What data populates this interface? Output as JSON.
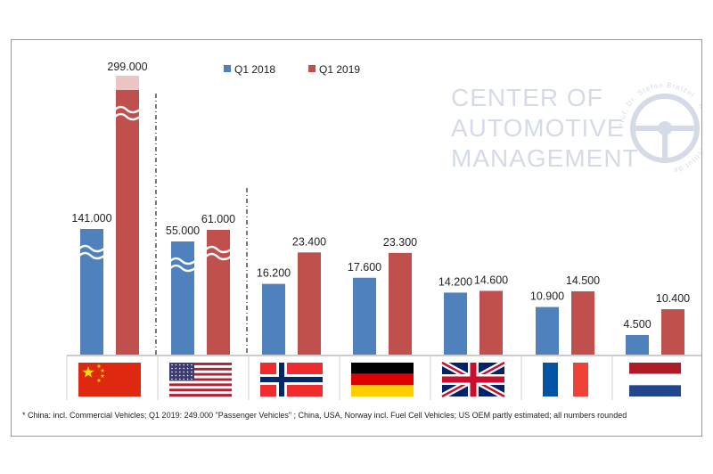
{
  "chart_data": {
    "type": "bar",
    "categories": [
      "China",
      "USA",
      "Norway",
      "Germany",
      "UK",
      "France",
      "Netherlands"
    ],
    "category_icons": [
      "flag-china-icon",
      "flag-usa-icon",
      "flag-norway-icon",
      "flag-germany-icon",
      "flag-uk-icon",
      "flag-france-icon",
      "flag-netherlands-icon"
    ],
    "series": [
      {
        "name": "Q1 2018",
        "color": "#4f81bd",
        "values": [
          141000,
          55000,
          16200,
          17600,
          14200,
          10900,
          4500
        ],
        "labels": [
          "141.000",
          "55.000",
          "16.200",
          "17.600",
          "14.200",
          "10.900",
          "4.500"
        ]
      },
      {
        "name": "Q1 2019",
        "color": "#c0504d",
        "values": [
          299000,
          61000,
          23400,
          23300,
          14600,
          14500,
          10400
        ],
        "labels": [
          "299.000",
          "61.000",
          "23.400",
          "23.300",
          "14.600",
          "14.500",
          "10.400"
        ]
      }
    ],
    "legend_position": "top-center",
    "axis_break": [
      true,
      true,
      false,
      false,
      false,
      false,
      false
    ],
    "grid": false
  },
  "logo": {
    "line1": "CENTER OF",
    "line2": "AUTOMOTIVE",
    "line3": "MANAGEMENT",
    "ring_text": "Prof. Dr. Stefan Bratzel · www.auto-institut.de"
  },
  "footnote": "* China: incl. Commercial Vehicles; Q1 2019: 249.000 \"Passenger Vehicles\" ; China, USA, Norway incl. Fuel Cell Vehicles; US OEM partly estimated; all numbers rounded"
}
